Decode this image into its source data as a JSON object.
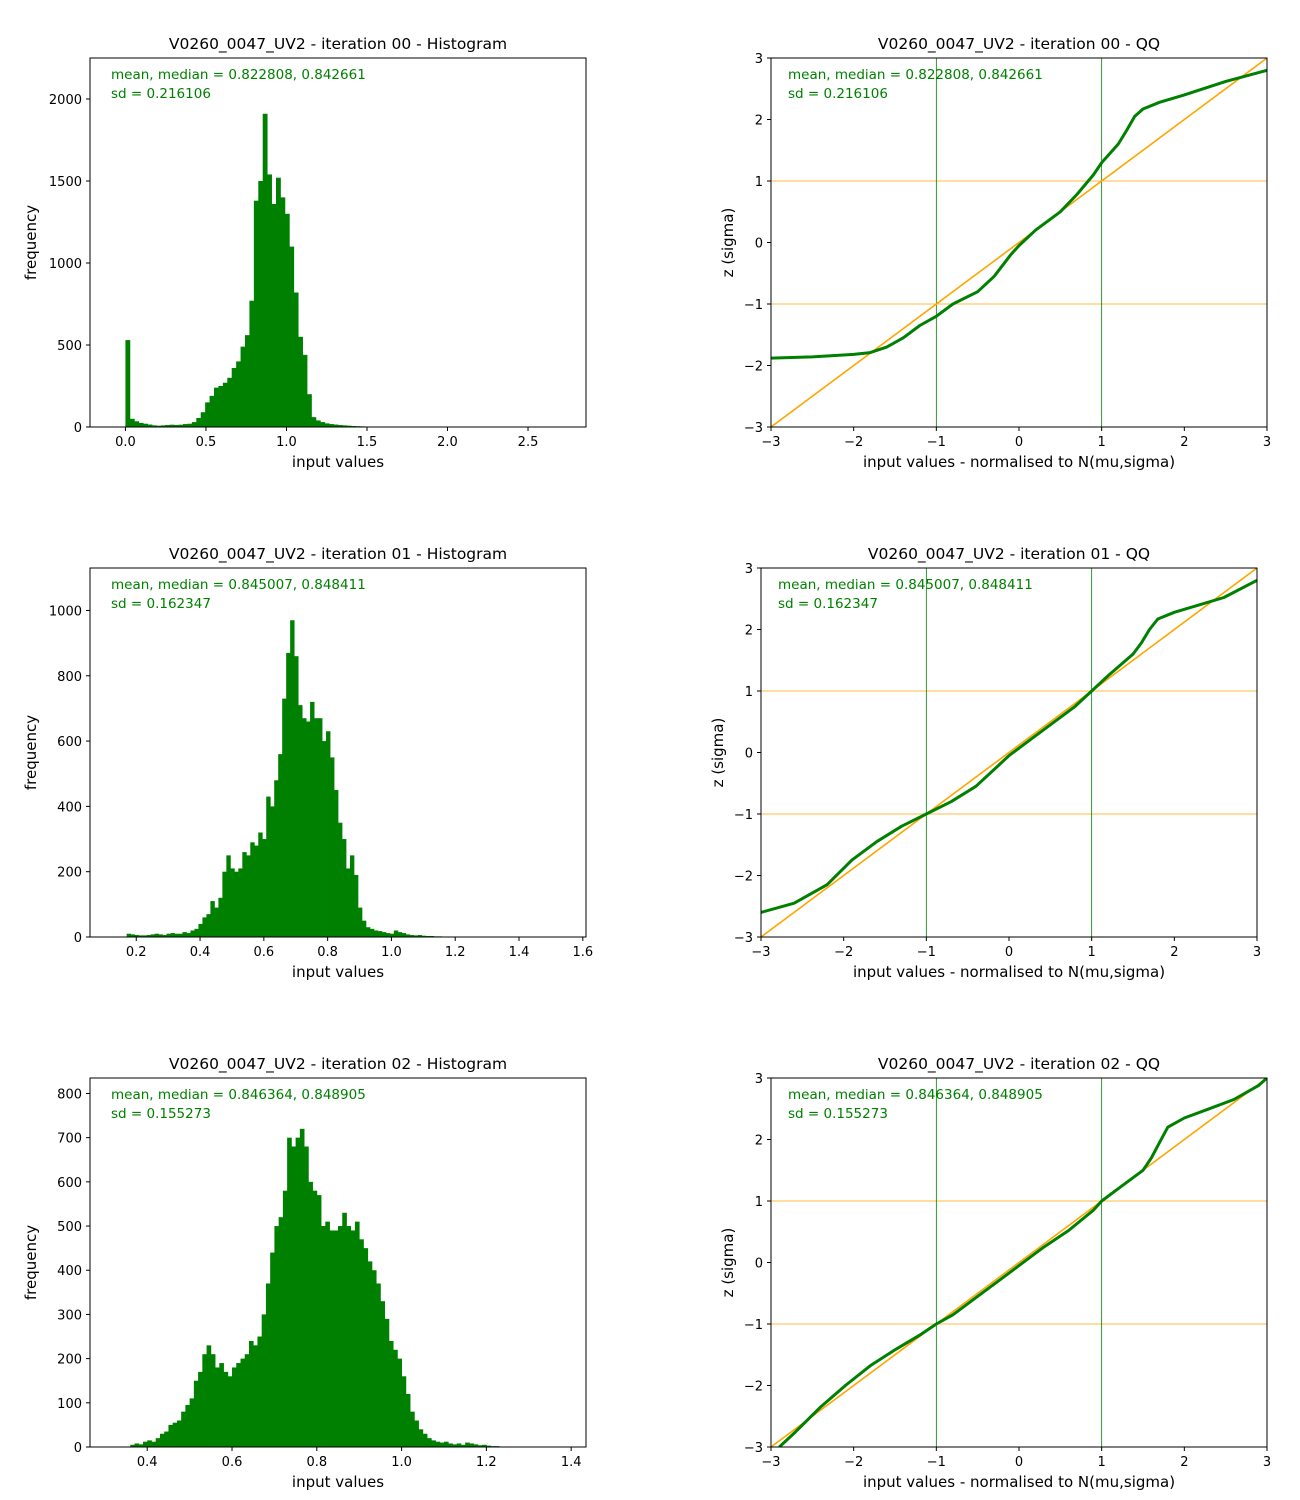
{
  "chart_data": [
    {
      "type": "bar",
      "title": "V0260_0047_UV2 - iteration 00 - Histogram",
      "xlabel": "input values",
      "ylabel": "frequency",
      "xlim": [
        -0.22,
        2.86
      ],
      "ylim": [
        0,
        2250
      ],
      "xticks": [
        0.0,
        0.5,
        1.0,
        1.5,
        2.0,
        2.5
      ],
      "xtick_labels": [
        "0.0",
        "0.5",
        "1.0",
        "1.5",
        "2.0",
        "2.5"
      ],
      "yticks": [
        0,
        500,
        1000,
        1500,
        2000
      ],
      "ytick_labels": [
        "0",
        "500",
        "1000",
        "1500",
        "2000"
      ],
      "annotation": [
        "mean, median = 0.822808, 0.842661",
        "sd = 0.216106"
      ],
      "bin_start": 0.0,
      "bin_width": 0.0275,
      "values": [
        530,
        50,
        35,
        25,
        20,
        15,
        10,
        8,
        10,
        12,
        14,
        12,
        14,
        18,
        20,
        30,
        55,
        90,
        150,
        190,
        240,
        250,
        270,
        300,
        360,
        400,
        490,
        560,
        770,
        1380,
        1500,
        1910,
        1540,
        1360,
        1520,
        1400,
        1300,
        1100,
        820,
        550,
        440,
        200,
        60,
        40,
        30,
        22,
        18,
        15,
        12,
        10,
        8,
        6,
        5,
        4,
        3,
        2,
        2,
        1,
        1
      ],
      "color": "#008000"
    },
    {
      "type": "line",
      "title": "V0260_0047_UV2 - iteration 00 - QQ",
      "xlabel": "input values - normalised to N(mu,sigma)",
      "ylabel": "z (sigma)",
      "xlim": [
        -3,
        3
      ],
      "ylim": [
        -3,
        3
      ],
      "xticks": [
        -3,
        -2,
        -1,
        0,
        1,
        2,
        3
      ],
      "xtick_labels": [
        "−3",
        "−2",
        "−1",
        "0",
        "1",
        "2",
        "3"
      ],
      "yticks": [
        -3,
        -2,
        -1,
        0,
        1,
        2,
        3
      ],
      "ytick_labels": [
        "−3",
        "−2",
        "−1",
        "0",
        "1",
        "2",
        "3"
      ],
      "annotation": [
        "mean, median = 0.822808, 0.842661",
        "sd = 0.216106"
      ],
      "vlines": [
        -1,
        1
      ],
      "hlines": [
        -1,
        1
      ],
      "reference_line": [
        [
          -3,
          -3
        ],
        [
          3,
          3
        ]
      ],
      "series": [
        {
          "x": [
            -3.0,
            -2.5,
            -2.0,
            -1.8,
            -1.6,
            -1.4,
            -1.2,
            -1.0,
            -0.8,
            -0.5,
            -0.3,
            -0.1,
            0.0,
            0.2,
            0.5,
            0.7,
            0.9,
            1.0,
            1.2,
            1.3,
            1.4,
            1.5,
            1.7,
            2.0,
            2.5,
            3.0
          ],
          "y": [
            -1.88,
            -1.86,
            -1.82,
            -1.79,
            -1.7,
            -1.55,
            -1.35,
            -1.2,
            -1.0,
            -0.8,
            -0.55,
            -0.2,
            -0.05,
            0.2,
            0.5,
            0.78,
            1.1,
            1.3,
            1.6,
            1.82,
            2.05,
            2.17,
            2.28,
            2.4,
            2.62,
            2.8
          ]
        }
      ],
      "colors": {
        "data": "#008000",
        "reference": "#ffa500",
        "vlines": "#008000",
        "hlines": "#ffa500"
      }
    },
    {
      "type": "bar",
      "title": "V0260_0047_UV2 - iteration 01 - Histogram",
      "xlabel": "input values",
      "ylabel": "frequency",
      "xlim": [
        0.055,
        1.61
      ],
      "ylim": [
        0,
        1130
      ],
      "xticks": [
        0.2,
        0.4,
        0.6,
        0.8,
        1.0,
        1.2,
        1.4,
        1.6
      ],
      "xtick_labels": [
        "0.2",
        "0.4",
        "0.6",
        "0.8",
        "1.0",
        "1.2",
        "1.4",
        "1.6"
      ],
      "yticks": [
        0,
        200,
        400,
        600,
        800,
        1000
      ],
      "ytick_labels": [
        "0",
        "200",
        "400",
        "600",
        "800",
        "1000"
      ],
      "annotation": [
        "mean, median = 0.845007, 0.848411",
        "sd = 0.162347"
      ],
      "bin_start": 0.17,
      "bin_width": 0.0125,
      "values": [
        10,
        8,
        6,
        5,
        5,
        6,
        8,
        10,
        8,
        6,
        10,
        12,
        10,
        10,
        15,
        12,
        20,
        25,
        40,
        60,
        70,
        110,
        90,
        120,
        200,
        250,
        210,
        200,
        210,
        260,
        250,
        290,
        280,
        320,
        300,
        430,
        400,
        480,
        560,
        730,
        870,
        970,
        860,
        710,
        670,
        660,
        720,
        670,
        670,
        600,
        630,
        550,
        450,
        350,
        300,
        210,
        250,
        190,
        90,
        50,
        30,
        25,
        20,
        18,
        15,
        12,
        10,
        20,
        15,
        12,
        8,
        6,
        5,
        6,
        4,
        3,
        3,
        2,
        2,
        1
      ],
      "color": "#008000"
    },
    {
      "type": "line",
      "title": "V0260_0047_UV2 - iteration 01 - QQ",
      "xlabel": "input values - normalised to N(mu,sigma)",
      "ylabel": "z (sigma)",
      "xlim": [
        -3,
        3
      ],
      "ylim": [
        -3,
        3
      ],
      "xticks": [
        -3,
        -2,
        -1,
        0,
        1,
        2,
        3
      ],
      "xtick_labels": [
        "−3",
        "−2",
        "−1",
        "0",
        "1",
        "2",
        "3"
      ],
      "yticks": [
        -3,
        -2,
        -1,
        0,
        1,
        2,
        3
      ],
      "ytick_labels": [
        "−3",
        "−2",
        "−1",
        "0",
        "1",
        "2",
        "3"
      ],
      "annotation": [
        "mean, median = 0.845007, 0.848411",
        "sd = 0.162347"
      ],
      "vlines": [
        -1,
        1
      ],
      "hlines": [
        -1,
        1
      ],
      "reference_line": [
        [
          -3,
          -3
        ],
        [
          3,
          3
        ]
      ],
      "series": [
        {
          "x": [
            -3.0,
            -2.6,
            -2.2,
            -1.9,
            -1.6,
            -1.3,
            -1.0,
            -0.7,
            -0.4,
            -0.2,
            0.0,
            0.3,
            0.6,
            0.8,
            1.0,
            1.2,
            1.5,
            1.6,
            1.7,
            1.8,
            2.0,
            2.3,
            2.6,
            3.0
          ],
          "y": [
            -2.6,
            -2.45,
            -2.15,
            -1.75,
            -1.45,
            -1.2,
            -1.0,
            -0.8,
            -0.55,
            -0.3,
            -0.05,
            0.25,
            0.55,
            0.75,
            1.0,
            1.25,
            1.6,
            1.78,
            2.0,
            2.17,
            2.28,
            2.4,
            2.52,
            2.8
          ]
        }
      ],
      "colors": {
        "data": "#008000",
        "reference": "#ffa500",
        "vlines": "#008000",
        "hlines": "#ffa500"
      }
    },
    {
      "type": "bar",
      "title": "V0260_0047_UV2 - iteration 02 - Histogram",
      "xlabel": "input values",
      "ylabel": "frequency",
      "xlim": [
        0.265,
        1.435
      ],
      "ylim": [
        0,
        835
      ],
      "xticks": [
        0.4,
        0.6,
        0.8,
        1.0,
        1.2,
        1.4
      ],
      "xtick_labels": [
        "0.4",
        "0.6",
        "0.8",
        "1.0",
        "1.2",
        "1.4"
      ],
      "yticks": [
        0,
        100,
        200,
        300,
        400,
        500,
        600,
        700,
        800
      ],
      "ytick_labels": [
        "0",
        "100",
        "200",
        "300",
        "400",
        "500",
        "600",
        "700",
        "800"
      ],
      "annotation": [
        "mean, median = 0.846364, 0.848905",
        "sd = 0.155273"
      ],
      "bin_start": 0.36,
      "bin_width": 0.01,
      "values": [
        5,
        8,
        6,
        12,
        15,
        12,
        20,
        30,
        35,
        50,
        55,
        60,
        80,
        95,
        110,
        150,
        170,
        210,
        230,
        210,
        180,
        190,
        170,
        160,
        180,
        190,
        200,
        210,
        240,
        230,
        250,
        300,
        370,
        440,
        500,
        520,
        580,
        700,
        680,
        700,
        720,
        680,
        600,
        580,
        570,
        500,
        510,
        490,
        490,
        500,
        530,
        500,
        490,
        510,
        470,
        450,
        420,
        400,
        370,
        330,
        290,
        240,
        220,
        200,
        160,
        120,
        80,
        60,
        40,
        30,
        20,
        15,
        12,
        10,
        12,
        8,
        6,
        8,
        5,
        10,
        8,
        6,
        4,
        5,
        3,
        2,
        2
      ],
      "color": "#008000"
    },
    {
      "type": "line",
      "title": "V0260_0047_UV2 - iteration 02 - QQ",
      "xlabel": "input values - normalised to N(mu,sigma)",
      "ylabel": "z (sigma)",
      "xlim": [
        -3,
        3
      ],
      "ylim": [
        -3,
        3
      ],
      "xticks": [
        -3,
        -2,
        -1,
        0,
        1,
        2,
        3
      ],
      "xtick_labels": [
        "−3",
        "−2",
        "−1",
        "0",
        "1",
        "2",
        "3"
      ],
      "yticks": [
        -3,
        -2,
        -1,
        0,
        1,
        2,
        3
      ],
      "ytick_labels": [
        "−3",
        "−2",
        "−1",
        "0",
        "1",
        "2",
        "3"
      ],
      "annotation": [
        "mean, median = 0.846364, 0.848905",
        "sd = 0.155273"
      ],
      "vlines": [
        -1,
        1
      ],
      "hlines": [
        -1,
        1
      ],
      "reference_line": [
        [
          -3,
          -3
        ],
        [
          3,
          3
        ]
      ],
      "series": [
        {
          "x": [
            -2.9,
            -2.7,
            -2.4,
            -2.1,
            -1.8,
            -1.5,
            -1.2,
            -1.0,
            -0.8,
            -0.5,
            -0.2,
            0.0,
            0.3,
            0.6,
            0.9,
            1.0,
            1.2,
            1.5,
            1.6,
            1.7,
            1.8,
            2.0,
            2.3,
            2.6,
            2.9,
            3.0
          ],
          "y": [
            -3.0,
            -2.75,
            -2.35,
            -2.0,
            -1.68,
            -1.42,
            -1.18,
            -1.0,
            -0.85,
            -0.55,
            -0.25,
            -0.05,
            0.25,
            0.52,
            0.85,
            1.0,
            1.2,
            1.5,
            1.7,
            1.95,
            2.2,
            2.35,
            2.5,
            2.65,
            2.88,
            3.0
          ]
        }
      ],
      "colors": {
        "data": "#008000",
        "reference": "#ffa500",
        "vlines": "#008000",
        "hlines": "#ffa500"
      }
    }
  ]
}
